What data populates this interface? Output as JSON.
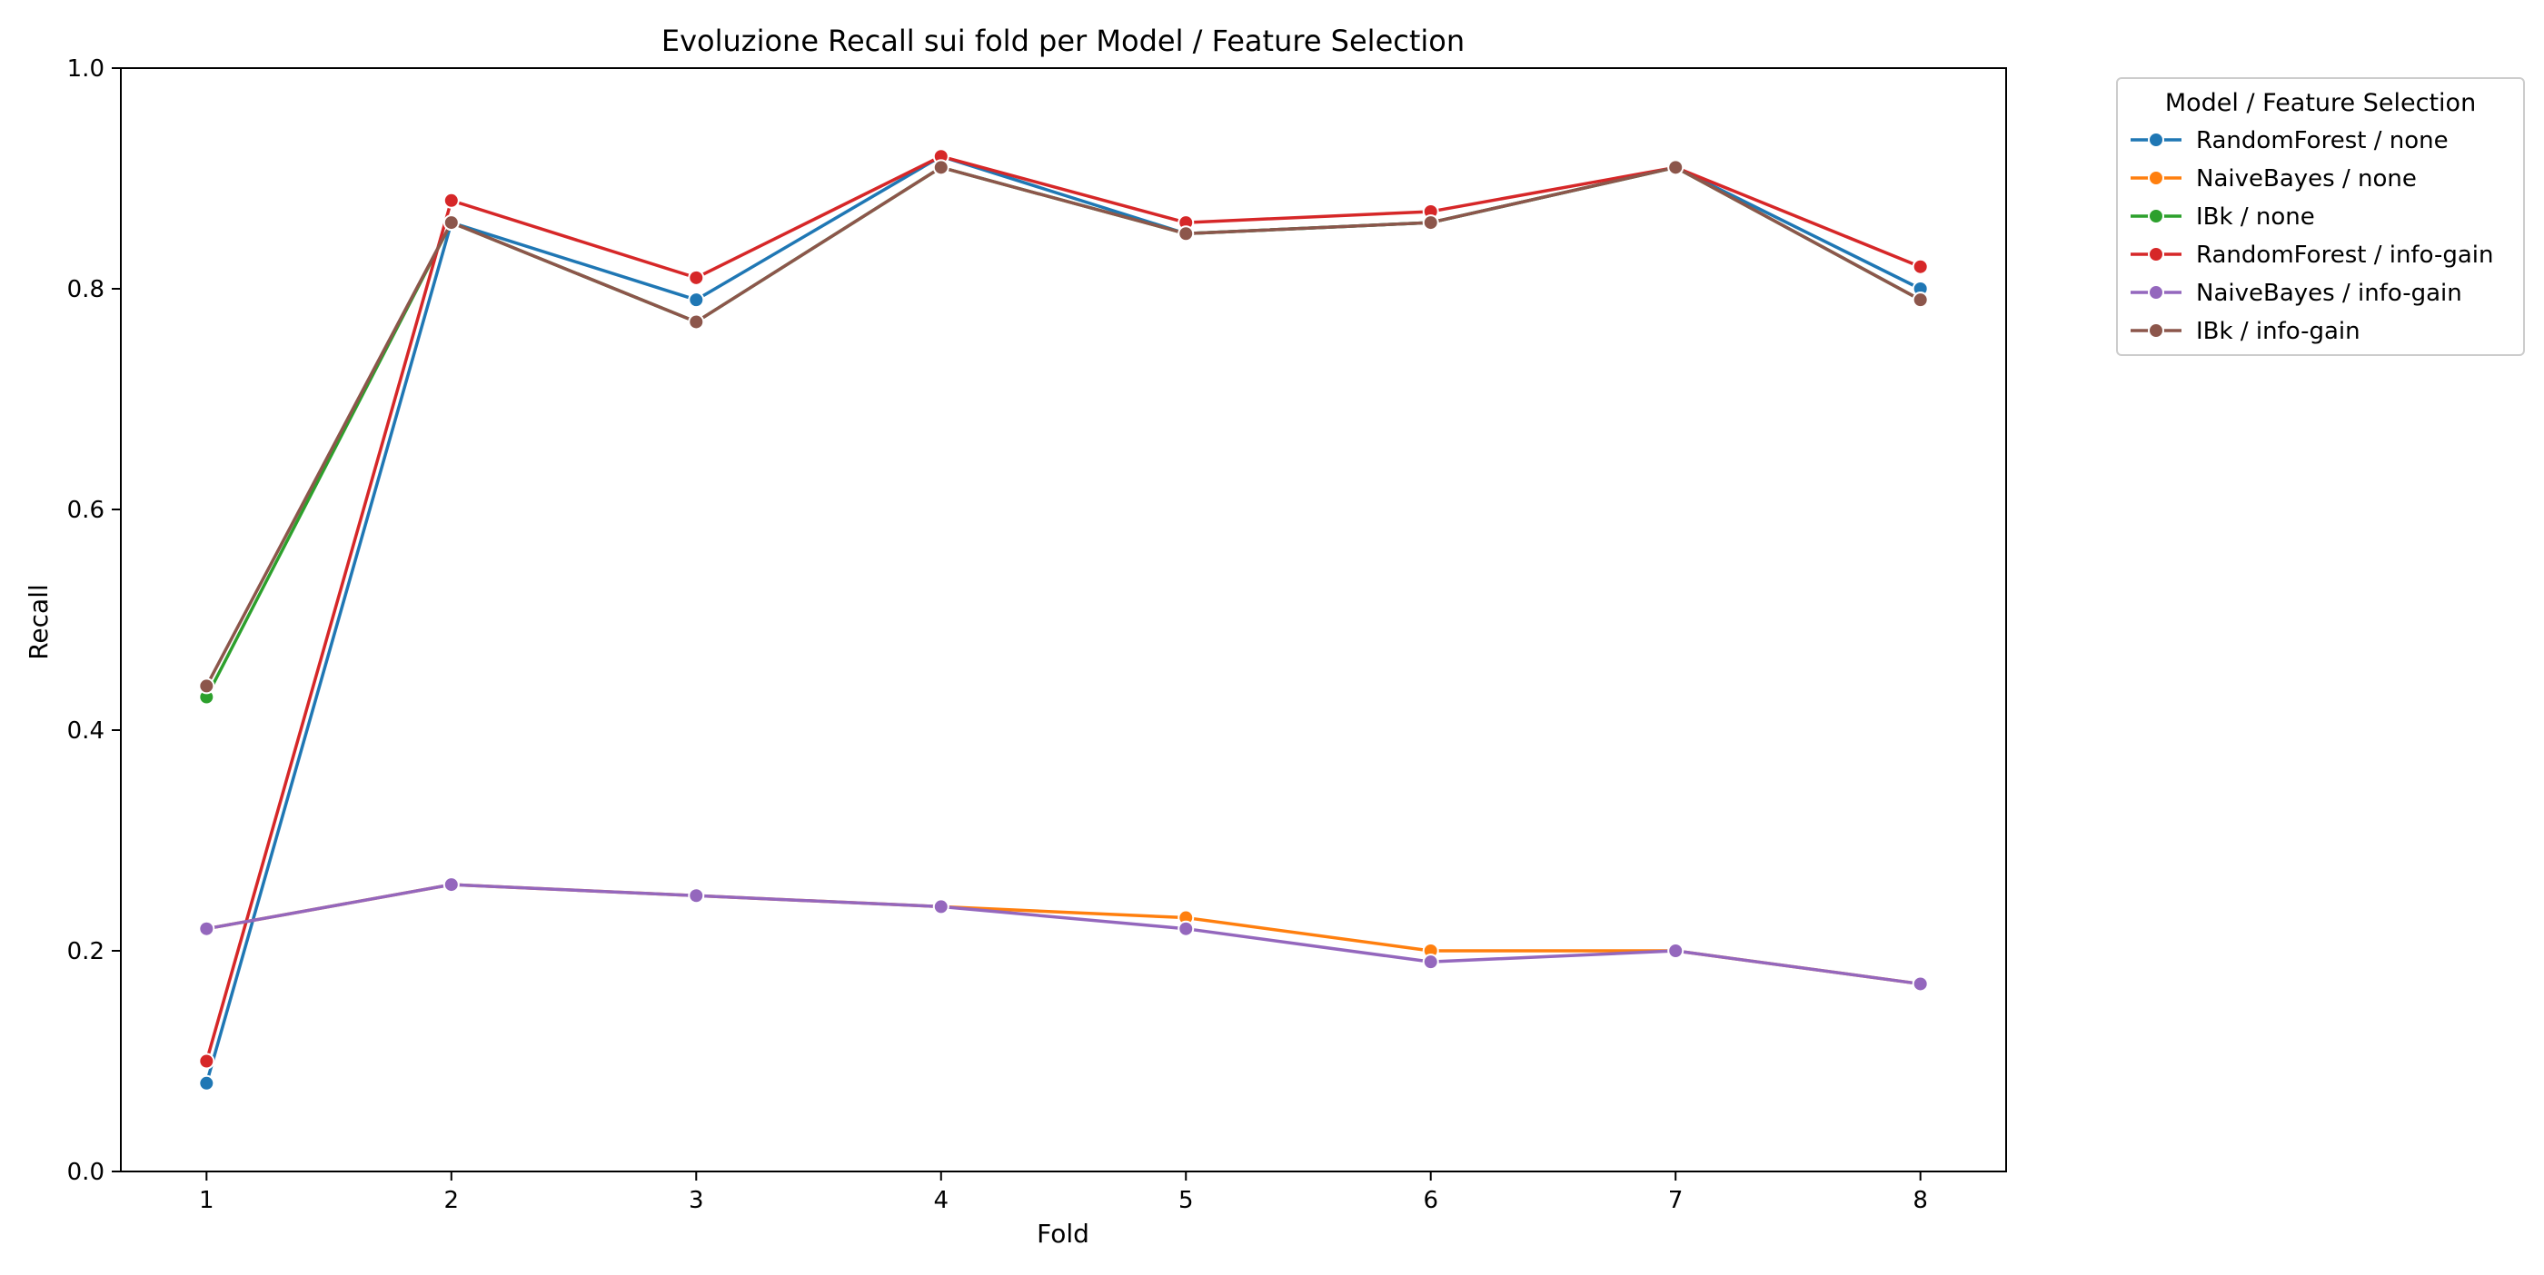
{
  "chart_data": {
    "type": "line",
    "title": "Evoluzione Recall sui fold per Model / Feature Selection",
    "xlabel": "Fold",
    "ylabel": "Recall",
    "x": [
      1,
      2,
      3,
      4,
      5,
      6,
      7,
      8
    ],
    "x_ticks": [
      "1",
      "2",
      "3",
      "4",
      "5",
      "6",
      "7",
      "8"
    ],
    "xlim": [
      0.65,
      8.35
    ],
    "ylim": [
      0.0,
      1.0
    ],
    "y_ticks": [
      "0.0",
      "0.2",
      "0.4",
      "0.6",
      "0.8",
      "1.0"
    ],
    "grid": false,
    "legend": {
      "title": "Model / Feature Selection",
      "placement": "outside-top-right"
    },
    "series": [
      {
        "name": "RandomForest / none",
        "color": "#1f77b4",
        "values": [
          0.08,
          0.86,
          0.79,
          0.92,
          0.85,
          0.86,
          0.91,
          0.8
        ]
      },
      {
        "name": "NaiveBayes / none",
        "color": "#ff7f0e",
        "values": [
          0.22,
          0.26,
          0.25,
          0.24,
          0.23,
          0.2,
          0.2,
          0.17
        ]
      },
      {
        "name": "IBk / none",
        "color": "#2ca02c",
        "values": [
          0.43,
          0.86,
          0.77,
          0.91,
          0.85,
          0.86,
          0.91,
          0.79
        ]
      },
      {
        "name": "RandomForest / info-gain",
        "color": "#d62728",
        "values": [
          0.1,
          0.88,
          0.81,
          0.92,
          0.86,
          0.87,
          0.91,
          0.82
        ]
      },
      {
        "name": "NaiveBayes / info-gain",
        "color": "#9467bd",
        "values": [
          0.22,
          0.26,
          0.25,
          0.24,
          0.22,
          0.19,
          0.2,
          0.17
        ]
      },
      {
        "name": "IBk / info-gain",
        "color": "#8c564b",
        "values": [
          0.44,
          0.86,
          0.77,
          0.91,
          0.85,
          0.86,
          0.91,
          0.79
        ]
      }
    ]
  }
}
